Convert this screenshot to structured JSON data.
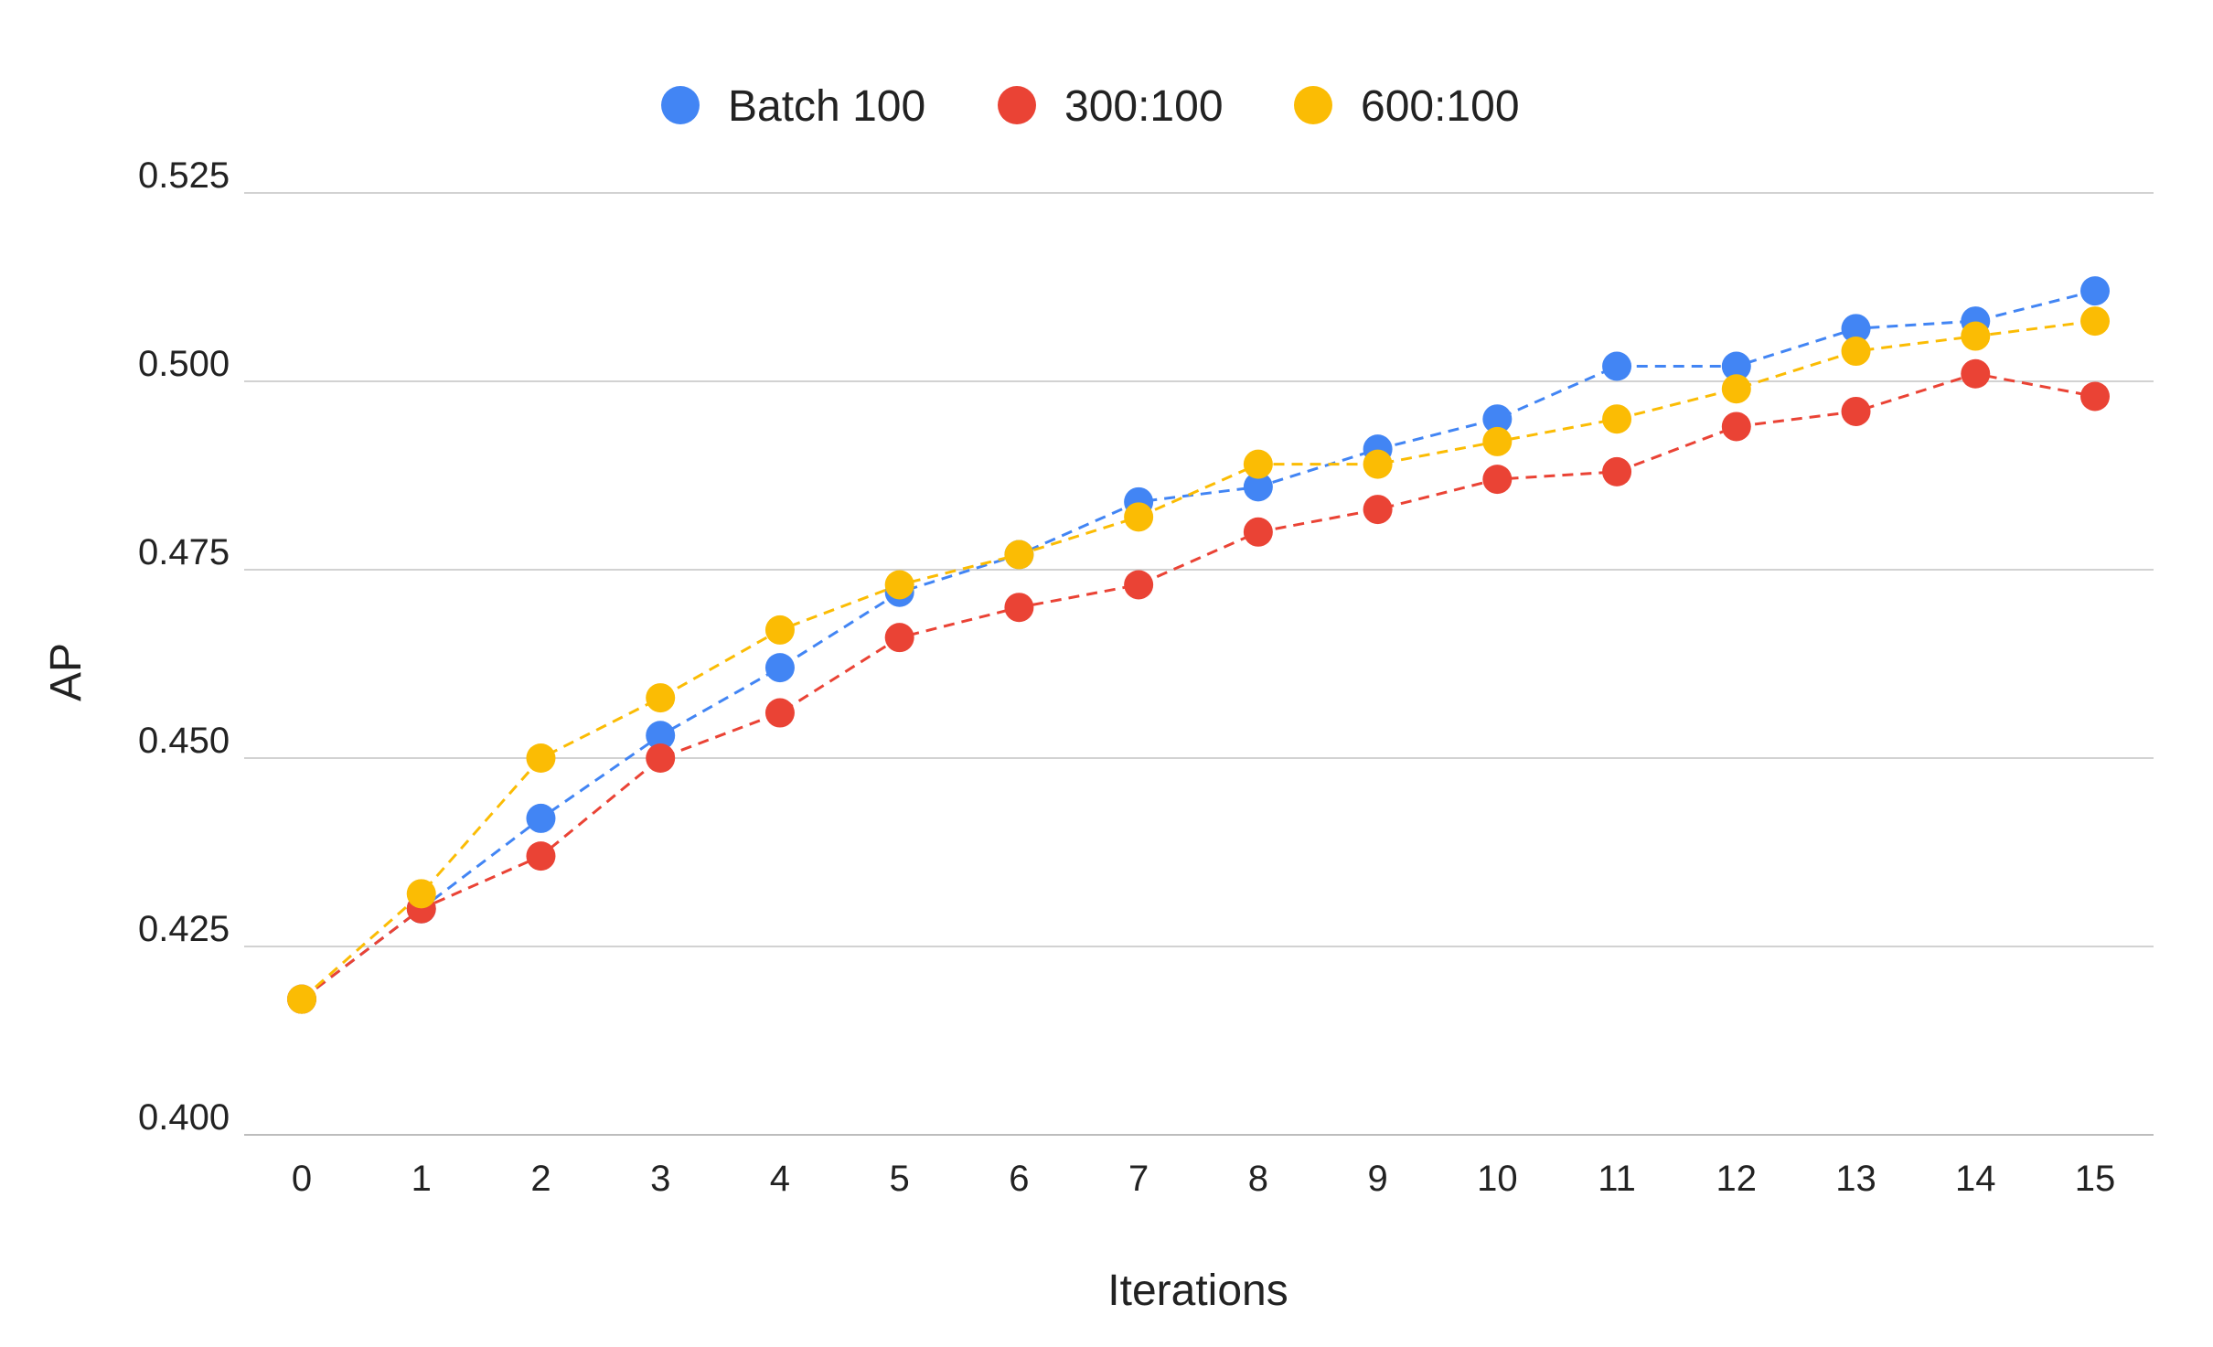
{
  "chart_data": {
    "type": "line",
    "line_style": "dashed",
    "marker": "circle",
    "title": "",
    "xlabel": "Iterations",
    "ylabel": "AP",
    "x": [
      0,
      1,
      2,
      3,
      4,
      5,
      6,
      7,
      8,
      9,
      10,
      11,
      12,
      13,
      14,
      15
    ],
    "ylim": [
      0.4,
      0.525
    ],
    "yticks": [
      "0.400",
      "0.425",
      "0.450",
      "0.475",
      "0.500",
      "0.525"
    ],
    "grid": "horizontal",
    "legend_position": "top-center",
    "series": [
      {
        "name": "Batch 100",
        "color": "#4285F4",
        "values": [
          0.418,
          0.43,
          0.442,
          0.453,
          0.462,
          0.472,
          0.477,
          0.484,
          0.486,
          0.491,
          0.495,
          0.502,
          0.502,
          0.507,
          0.508,
          0.512
        ]
      },
      {
        "name": "300:100",
        "color": "#EA4335",
        "values": [
          0.418,
          0.43,
          0.437,
          0.45,
          0.456,
          0.466,
          0.47,
          0.473,
          0.48,
          0.483,
          0.487,
          0.488,
          0.494,
          0.496,
          0.501,
          0.498
        ]
      },
      {
        "name": "600:100",
        "color": "#FBBC04",
        "values": [
          0.418,
          0.432,
          0.45,
          0.458,
          0.467,
          0.473,
          0.477,
          0.482,
          0.489,
          0.489,
          0.492,
          0.495,
          0.499,
          0.504,
          0.506,
          0.508
        ]
      }
    ]
  }
}
